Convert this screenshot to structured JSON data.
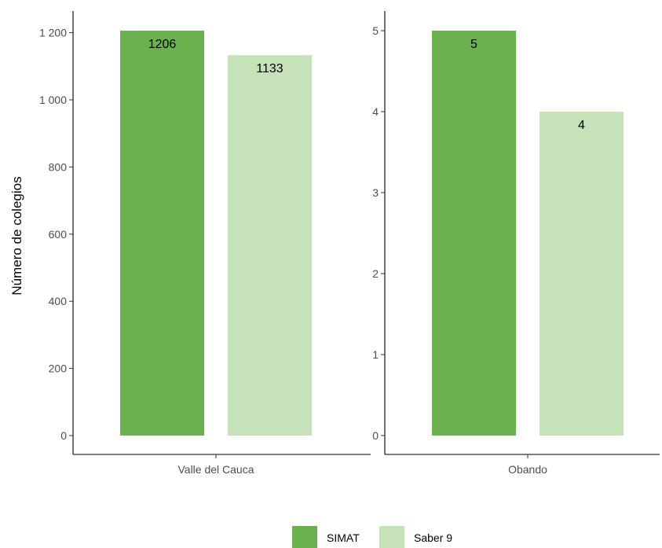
{
  "chart_data": [
    {
      "type": "bar",
      "ylabel": "Número de colegios",
      "ylim": [
        0,
        1206
      ],
      "yticks": [
        0,
        200,
        400,
        600,
        800,
        1000,
        1200
      ],
      "ytick_labels": [
        "0",
        "200",
        "400",
        "600",
        "800",
        "1 000",
        "1 200"
      ],
      "categories": [
        "Valle del Cauca"
      ],
      "series": [
        {
          "name": "SIMAT",
          "values": [
            1206
          ],
          "labels": [
            "1206"
          ],
          "color": "#6ab04c"
        },
        {
          "name": "Saber 9",
          "values": [
            1133
          ],
          "labels": [
            "1133"
          ],
          "color": "#c5e2b9"
        }
      ]
    },
    {
      "type": "bar",
      "ylabel": "",
      "ylim": [
        0,
        5
      ],
      "yticks": [
        0,
        1,
        2,
        3,
        4,
        5
      ],
      "ytick_labels": [
        "0",
        "1",
        "2",
        "3",
        "4",
        "5"
      ],
      "categories": [
        "Obando"
      ],
      "series": [
        {
          "name": "SIMAT",
          "values": [
            5
          ],
          "labels": [
            "5"
          ],
          "color": "#6ab04c"
        },
        {
          "name": "Saber 9",
          "values": [
            4
          ],
          "labels": [
            "4"
          ],
          "color": "#c5e2b9"
        }
      ]
    }
  ],
  "legend": {
    "position": "bottom",
    "items": [
      {
        "label": "SIMAT",
        "color": "#6ab04c"
      },
      {
        "label": "Saber 9",
        "color": "#c5e2b9"
      }
    ]
  }
}
